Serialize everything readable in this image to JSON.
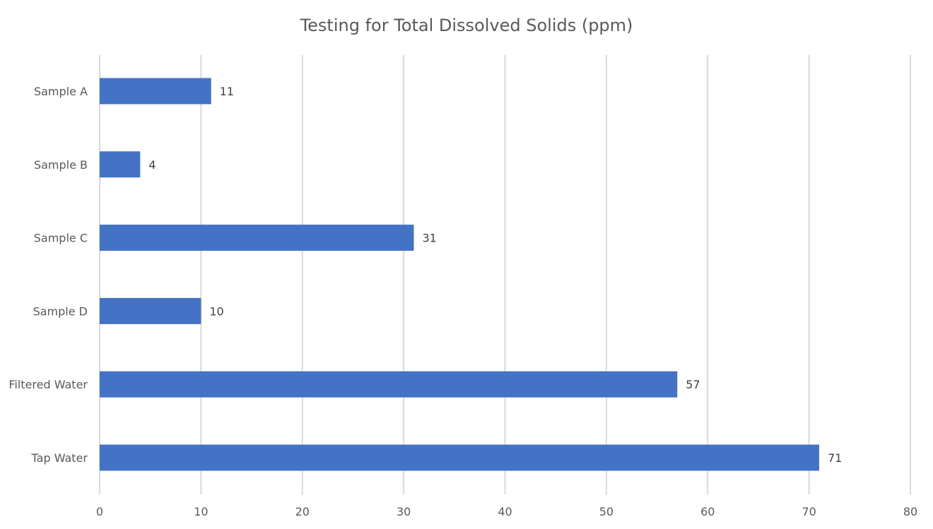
{
  "chart_data": {
    "type": "bar",
    "orientation": "horizontal",
    "title": "Testing for Total Dissolved Solids (ppm)",
    "xlabel": "",
    "ylabel": "",
    "categories": [
      "Sample A",
      "Sample B",
      "Sample C",
      "Sample D",
      "Filtered Water",
      "Tap Water"
    ],
    "values": [
      11,
      4,
      31,
      10,
      57,
      71
    ],
    "xlim": [
      0,
      80
    ],
    "ticks": [
      0,
      10,
      20,
      30,
      40,
      50,
      60,
      70,
      80
    ],
    "grid": true,
    "legend": "none",
    "data_labels": true,
    "bar_color": "#4472C4",
    "grid_color": "#d9d9d9",
    "text_color": "#595959"
  }
}
